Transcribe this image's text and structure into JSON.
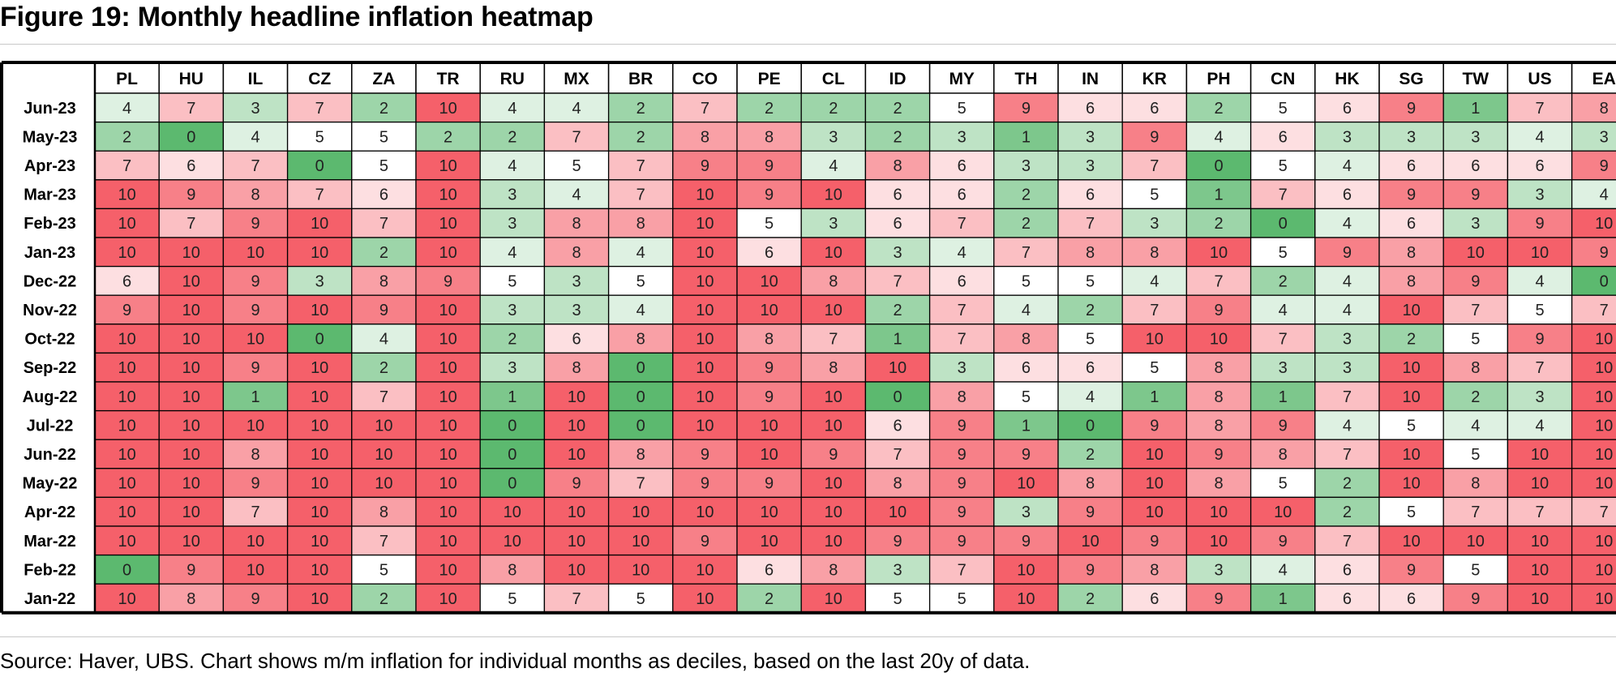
{
  "page": {
    "title": "Figure 19: Monthly headline inflation heatmap"
  },
  "footer": {
    "source": "Source: Haver, UBS. Chart shows m/m inflation for individual months as deciles, based on the last 20y of data."
  },
  "colors": {
    "low": "#5cb96f",
    "mid": "#ffffff",
    "high": "#f5606a",
    "border": "#000000"
  },
  "chart_data": {
    "type": "heatmap",
    "title": "Figure 19: Monthly headline inflation heatmap",
    "color_scale": {
      "min": 0,
      "mid": 5,
      "max": 10,
      "low_color": "green",
      "high_color": "red"
    },
    "columns": [
      "PL",
      "HU",
      "IL",
      "CZ",
      "ZA",
      "TR",
      "RU",
      "MX",
      "BR",
      "CO",
      "PE",
      "CL",
      "ID",
      "MY",
      "TH",
      "IN",
      "KR",
      "PH",
      "CN",
      "HK",
      "SG",
      "TW",
      "US",
      "EA"
    ],
    "rows": [
      "Jun-23",
      "May-23",
      "Apr-23",
      "Mar-23",
      "Feb-23",
      "Jan-23",
      "Dec-22",
      "Nov-22",
      "Oct-22",
      "Sep-22",
      "Aug-22",
      "Jul-22",
      "Jun-22",
      "May-22",
      "Apr-22",
      "Mar-22",
      "Feb-22",
      "Jan-22"
    ],
    "values": [
      [
        4,
        7,
        3,
        7,
        2,
        10,
        4,
        4,
        2,
        7,
        2,
        2,
        2,
        5,
        9,
        6,
        6,
        2,
        5,
        6,
        9,
        1,
        7,
        8
      ],
      [
        2,
        0,
        4,
        5,
        5,
        2,
        2,
        7,
        2,
        8,
        8,
        3,
        2,
        3,
        1,
        3,
        9,
        4,
        6,
        3,
        3,
        3,
        4,
        3
      ],
      [
        7,
        6,
        7,
        0,
        5,
        10,
        4,
        5,
        7,
        9,
        9,
        4,
        8,
        6,
        3,
        3,
        7,
        0,
        5,
        4,
        6,
        6,
        6,
        9
      ],
      [
        10,
        9,
        8,
        7,
        6,
        10,
        3,
        4,
        7,
        10,
        9,
        10,
        6,
        6,
        2,
        6,
        5,
        1,
        7,
        6,
        9,
        9,
        3,
        4
      ],
      [
        10,
        7,
        9,
        10,
        7,
        10,
        3,
        8,
        8,
        10,
        5,
        3,
        6,
        7,
        2,
        7,
        3,
        2,
        0,
        4,
        6,
        3,
        9,
        10
      ],
      [
        10,
        10,
        10,
        10,
        2,
        10,
        4,
        8,
        4,
        10,
        6,
        10,
        3,
        4,
        7,
        8,
        8,
        10,
        5,
        9,
        8,
        10,
        10,
        9
      ],
      [
        6,
        10,
        9,
        3,
        8,
        9,
        5,
        3,
        5,
        10,
        10,
        8,
        7,
        6,
        5,
        5,
        4,
        7,
        2,
        4,
        8,
        9,
        4,
        0
      ],
      [
        9,
        10,
        9,
        10,
        9,
        10,
        3,
        3,
        4,
        10,
        10,
        10,
        2,
        7,
        4,
        2,
        7,
        9,
        4,
        4,
        10,
        7,
        5,
        7
      ],
      [
        10,
        10,
        10,
        0,
        4,
        10,
        2,
        6,
        8,
        10,
        8,
        7,
        1,
        7,
        8,
        5,
        10,
        10,
        7,
        3,
        2,
        5,
        9,
        10
      ],
      [
        10,
        10,
        9,
        10,
        2,
        10,
        3,
        8,
        0,
        10,
        9,
        8,
        10,
        3,
        6,
        6,
        5,
        8,
        3,
        3,
        10,
        8,
        7,
        10
      ],
      [
        10,
        10,
        1,
        10,
        7,
        10,
        1,
        10,
        0,
        10,
        9,
        10,
        0,
        8,
        5,
        4,
        1,
        8,
        1,
        7,
        10,
        2,
        3,
        10
      ],
      [
        10,
        10,
        10,
        10,
        10,
        10,
        0,
        10,
        0,
        10,
        10,
        10,
        6,
        9,
        1,
        0,
        9,
        8,
        9,
        4,
        5,
        4,
        4,
        10
      ],
      [
        10,
        10,
        8,
        10,
        10,
        10,
        0,
        10,
        8,
        9,
        10,
        9,
        7,
        9,
        9,
        2,
        10,
        9,
        8,
        7,
        10,
        5,
        10,
        10
      ],
      [
        10,
        10,
        9,
        10,
        10,
        10,
        0,
        9,
        7,
        9,
        9,
        10,
        8,
        9,
        10,
        8,
        10,
        8,
        5,
        2,
        10,
        8,
        10,
        10
      ],
      [
        10,
        10,
        7,
        10,
        8,
        10,
        10,
        10,
        10,
        10,
        10,
        10,
        10,
        9,
        3,
        9,
        10,
        10,
        10,
        2,
        5,
        7,
        7,
        7
      ],
      [
        10,
        10,
        10,
        10,
        7,
        10,
        10,
        10,
        10,
        9,
        10,
        10,
        9,
        9,
        9,
        10,
        9,
        10,
        9,
        7,
        10,
        10,
        10,
        10
      ],
      [
        0,
        9,
        10,
        10,
        5,
        10,
        8,
        10,
        10,
        10,
        6,
        8,
        3,
        7,
        10,
        9,
        8,
        3,
        4,
        6,
        9,
        5,
        10,
        10
      ],
      [
        10,
        8,
        9,
        10,
        2,
        10,
        5,
        7,
        5,
        10,
        2,
        10,
        5,
        5,
        10,
        2,
        6,
        9,
        1,
        6,
        6,
        9,
        10,
        10
      ]
    ]
  }
}
